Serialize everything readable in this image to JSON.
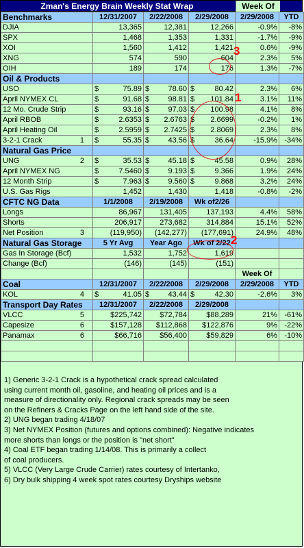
{
  "title": "Zman's Energy Brain Weekly Stat Wrap",
  "title_weekof": "Week Of",
  "benchmarks": {
    "header": [
      "Benchmarks",
      "12/31/2007",
      "2/22/2008",
      "2/29/2008",
      "2/29/2008",
      "YTD"
    ],
    "rows": [
      {
        "name": "DJIA",
        "tag": "",
        "a": "13,365",
        "b": "12,381",
        "c": "12,266",
        "wk": "-0.9%",
        "ytd": "-8%"
      },
      {
        "name": "SPX",
        "tag": "",
        "a": "1,468",
        "b": "1,353",
        "c": "1,331",
        "wk": "-1.7%",
        "ytd": "-9%"
      },
      {
        "name": "XOI",
        "tag": "",
        "a": "1,560",
        "b": "1,412",
        "c": "1,421",
        "wk": "0.6%",
        "ytd": "-9%"
      },
      {
        "name": "XNG",
        "tag": "",
        "a": "574",
        "b": "590",
        "c": "604",
        "wk": "2.3%",
        "ytd": "5%"
      },
      {
        "name": "OIH",
        "tag": "",
        "a": "189",
        "b": "174",
        "c": "176",
        "wk": "1.3%",
        "ytd": "-7%"
      }
    ]
  },
  "oil": {
    "header": "Oil & Products",
    "rows": [
      {
        "name": "USO",
        "tag": "",
        "cur": "$",
        "a": "75.89",
        "b": "78.60",
        "c": "80.42",
        "wk": "2.3%",
        "ytd": "6%"
      },
      {
        "name": "April NYMEX CL",
        "tag": "",
        "cur": "$",
        "a": "91.68",
        "b": "98.81",
        "c": "101.84",
        "wk": "3.1%",
        "ytd": "11%"
      },
      {
        "name": "12 Mo. Crude Strip",
        "tag": "",
        "cur": "$",
        "a": "93.16",
        "b": "97.03",
        "c": "100.98",
        "wk": "4.1%",
        "ytd": "8%"
      },
      {
        "name": "April RBOB",
        "tag": "",
        "cur": "$",
        "a": "2.6353",
        "b": "2.6763",
        "c": "2.6699",
        "wk": "-0.2%",
        "ytd": "1%"
      },
      {
        "name": "April Heating Oil",
        "tag": "",
        "cur": "$",
        "a": "2.5959",
        "b": "2.7425",
        "c": "2.8069",
        "wk": "2.3%",
        "ytd": "8%"
      },
      {
        "name": "3-2-1 Crack",
        "tag": "1",
        "cur": "$",
        "a": "55.35",
        "b": "43.56",
        "c": "36.64",
        "wk": "-15.9%",
        "ytd": "-34%"
      }
    ]
  },
  "natgas": {
    "header": "Natural Gas Price",
    "rows": [
      {
        "name": "UNG",
        "tag": "2",
        "cur": "$",
        "a": "35.53",
        "b": "45.18",
        "c": "45.58",
        "wk": "0.9%",
        "ytd": "28%"
      },
      {
        "name": "April NYMEX NG",
        "tag": "",
        "cur": "$",
        "a": "7.5460",
        "b": "9.193",
        "c": "9.366",
        "wk": "1.9%",
        "ytd": "24%"
      },
      {
        "name": "12 Month Strip",
        "tag": "",
        "cur": "$",
        "a": "7.963",
        "b": "9.560",
        "c": "9.868",
        "wk": "3.2%",
        "ytd": "24%"
      },
      {
        "name": "U.S. Gas Rigs",
        "tag": "",
        "cur": "",
        "a": "1,452",
        "b": "1,430",
        "c": "1,418",
        "wk": "-0.8%",
        "ytd": "-2%"
      }
    ]
  },
  "cftc": {
    "header": [
      "CFTC NG Data",
      "1/1/2008",
      "2/19/2008",
      "Wk of2/26",
      "",
      ""
    ],
    "rows": [
      {
        "name": "Longs",
        "tag": "",
        "a": "86,967",
        "b": "131,405",
        "c": "137,193",
        "wk": "4.4%",
        "ytd": "58%"
      },
      {
        "name": "Shorts",
        "tag": "",
        "a": "206,917",
        "b": "273,682",
        "c": "314,884",
        "wk": "15.1%",
        "ytd": "52%"
      },
      {
        "name": "Net Position",
        "tag": "3",
        "a": "(119,950)",
        "b": "(142,277)",
        "c": "(177,691)",
        "wk": "24.9%",
        "ytd": "48%"
      }
    ]
  },
  "storage": {
    "header": [
      "Natural Gas Storage",
      "5 Yr Avg",
      "Year Ago",
      "Wk of 2/22",
      "",
      ""
    ],
    "rows": [
      {
        "name": "Gas In Storage (Bcf)",
        "a": "1,532",
        "b": "1,752",
        "c": "1,619"
      },
      {
        "name": "Change (Bcf)",
        "a": "(146)",
        "b": "(145)",
        "c": "(151)"
      }
    ]
  },
  "coal": {
    "weekof": "Week Of",
    "header": [
      "Coal",
      "12/31/2007",
      "2/22/2008",
      "2/29/2008",
      "2/29/2008",
      "YTD"
    ],
    "rows": [
      {
        "name": "KOL",
        "tag": "4",
        "cur": "$",
        "a": "41.05",
        "b": "43.44",
        "c": "42.30",
        "wk": "-2.6%",
        "ytd": "3%"
      }
    ]
  },
  "transport": {
    "header": [
      "Transport Day Rates",
      "12/31/2007",
      "2/22/2008",
      "2/29/2008",
      "",
      ""
    ],
    "rows": [
      {
        "name": "VLCC",
        "tag": "5",
        "a": "$225,742",
        "b": "$72,784",
        "c": "$88,289",
        "wk": "21%",
        "ytd": "-61%"
      },
      {
        "name": "Capesize",
        "tag": "6",
        "a": "$157,128",
        "b": "$112,868",
        "c": "$122,876",
        "wk": "9%",
        "ytd": "-22%"
      },
      {
        "name": "Panamax",
        "tag": "6",
        "a": "$66,716",
        "b": "$56,400",
        "c": "$59,829",
        "wk": "6%",
        "ytd": "-10%"
      }
    ]
  },
  "notes": [
    "1) Generic 3-2-1 Crack is a hypothetical crack spread calculated",
    "using current month oil, gasoline, and heating oil prices and is a",
    "measure of directionality only. Regional crack spreads may be seen",
    "on the Refiners & Cracks Page on the left hand side of the site.",
    "2) UNG began trading 4/18/07",
    "3) Net NYMEX Position (futures and options combined): Negative indicates",
    "more shorts than longs or the position is \"net short\"",
    "4) Coal ETF began trading 1/14/08. This is primarily a collect",
    "of coal producers.",
    "5) VLCC (Very Large Crude Carrier) rates courtesy of Intertanko,",
    "6) Dry bulk shipping 4 week spot rates courtesy Dryships website"
  ],
  "annotations": [
    "1",
    "2",
    "3"
  ],
  "colors": {
    "header_bg": "#99ccff",
    "body_bg": "#ccffcc",
    "title_bg": "#000080",
    "annotation": "#ff0000"
  }
}
